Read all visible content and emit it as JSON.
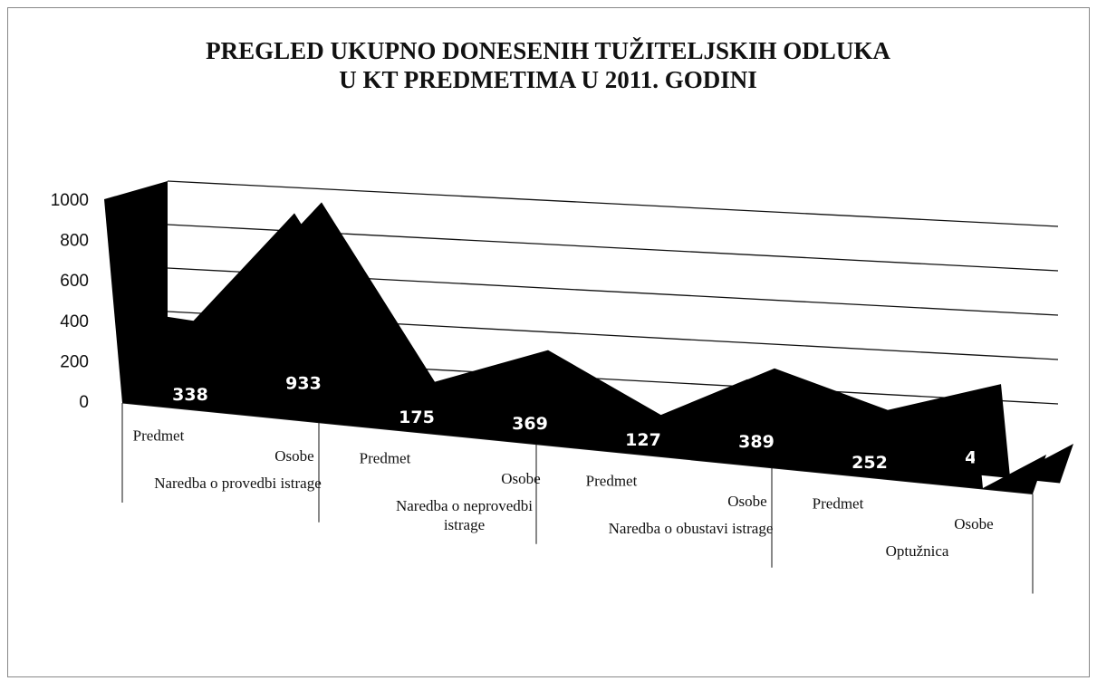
{
  "chart_data": {
    "type": "area",
    "title": "PREGLED UKUPNO DONESENIH TUŽITELJSKIH ODLUKA U KT PREDMETIMA U 2011. GODINI",
    "categories": [
      "Predmet",
      "Osobe",
      "Predmet",
      "Osobe",
      "Predmet",
      "Osobe",
      "Predmet",
      "Osobe"
    ],
    "groups": [
      "Naredba o provedbi istrage",
      "Naredba o neprovedbi istrage",
      "Naredba o obustavi istrage",
      "Optužnica"
    ],
    "values": [
      338,
      933,
      175,
      369,
      127,
      389,
      252,
      420
    ],
    "color": "#000000",
    "ylim": [
      0,
      1000
    ],
    "yticks": [
      0,
      200,
      400,
      600,
      800,
      1000
    ],
    "grid": true
  }
}
